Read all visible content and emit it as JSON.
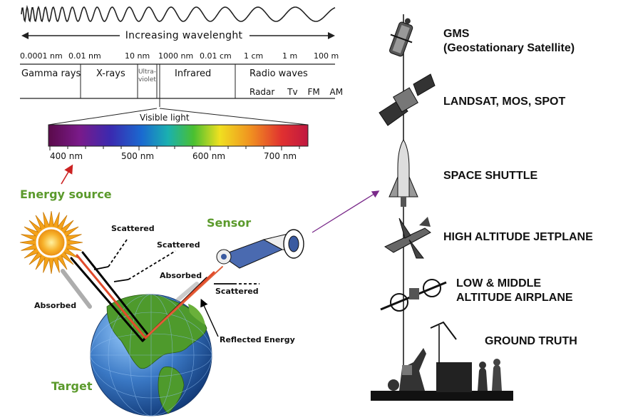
{
  "spectrum": {
    "title": "Increasing wavelenght",
    "ticks": [
      "0.0001 nm",
      "0.01 nm",
      "10 nm",
      "1000 nm",
      "0.01 cm",
      "1 cm",
      "1 m",
      "100 m"
    ],
    "bands": {
      "gamma": "Gamma rays",
      "xray": "X-rays",
      "uv_line1": "Ultra-",
      "uv_line2": "violet",
      "ir": "Infrared",
      "radio": "Radio waves",
      "radio_sub": [
        "Radar",
        "Tv",
        "FM",
        "AM"
      ]
    },
    "visible_label": "Visible light",
    "visible_ticks": [
      "400 nm",
      "500 nm",
      "600 nm",
      "700 nm"
    ]
  },
  "scene": {
    "energy_source": "Energy source",
    "sensor": "Sensor",
    "target": "Target",
    "scattered_1": "Scattered",
    "scattered_2": "Scattered",
    "scattered_3": "Scattered",
    "absorbed_1": "Absorbed",
    "absorbed_2": "Absorbed",
    "reflected": "Reflected Energy"
  },
  "platforms": {
    "gms_line1": "GMS",
    "gms_line2": "(Geostationary Satellite)",
    "landsat": "LANDSAT, MOS, SPOT",
    "shuttle": "SPACE SHUTTLE",
    "jet": "HIGH ALTITUDE JETPLANE",
    "airplane_line1": "LOW & MIDDLE",
    "airplane_line2": "ALTITUDE AIRPLANE",
    "ground": "GROUND TRUTH"
  },
  "icons": [
    "sun-icon",
    "globe-icon",
    "sensor-satellite-icon",
    "gms-satellite-icon",
    "landsat-satellite-icon",
    "space-shuttle-icon",
    "jetplane-icon",
    "airplane-icon",
    "ground-truth-icon"
  ],
  "colors": {
    "green_label": "#5b9a2c",
    "arrow_red": "#cc2222",
    "arrow_purple": "#7a2a8a",
    "ray_red": "#e24a2a",
    "ocean": "#3a78c4",
    "land": "#4e9a2c"
  }
}
